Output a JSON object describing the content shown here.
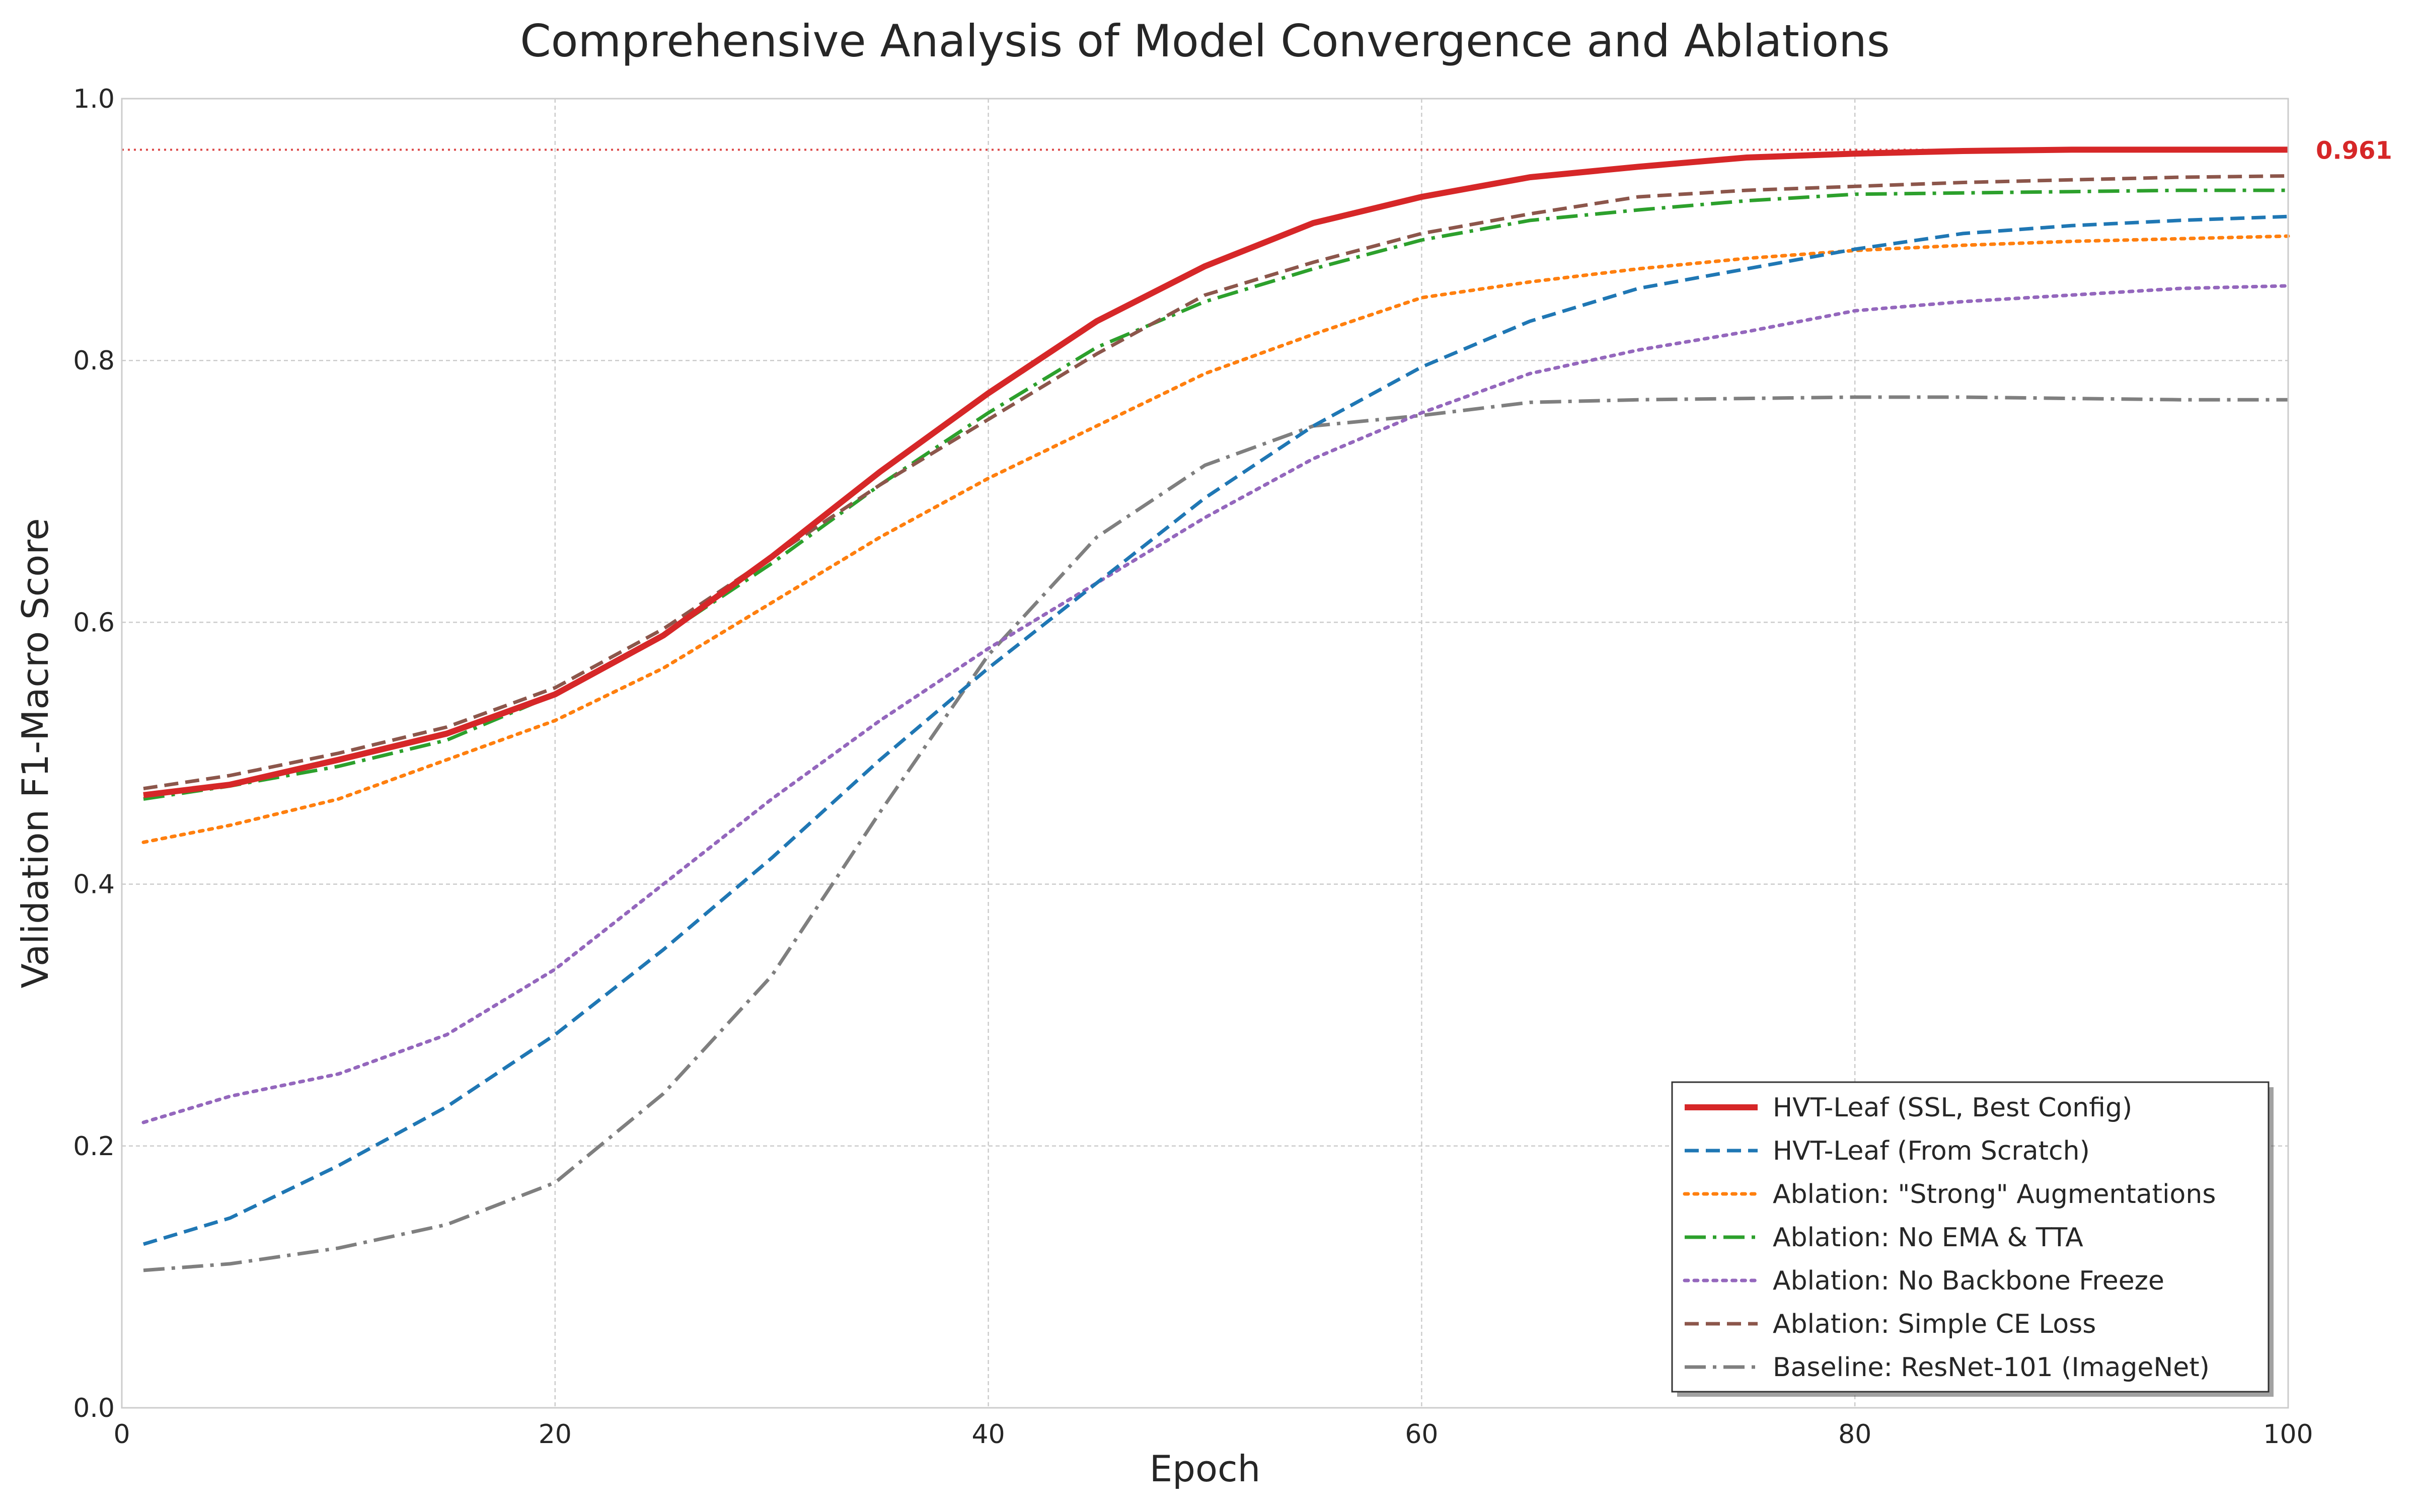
{
  "chart_data": {
    "type": "line",
    "title": "Comprehensive Analysis of Model Convergence and Ablations",
    "xlabel": "Epoch",
    "ylabel": "Validation F1-Macro Score",
    "xlim": [
      0,
      100
    ],
    "ylim": [
      0.0,
      1.0
    ],
    "x_ticks": [
      0,
      20,
      40,
      60,
      80,
      100
    ],
    "x_tick_labels": [
      "0",
      "20",
      "40",
      "60",
      "80",
      "100"
    ],
    "y_ticks": [
      0.0,
      0.2,
      0.4,
      0.6,
      0.8,
      1.0
    ],
    "y_tick_labels": [
      "0.0",
      "0.2",
      "0.4",
      "0.6",
      "0.8",
      "1.0"
    ],
    "grid": true,
    "legend_position": "lower-right",
    "reference_line": {
      "y": 0.961,
      "label": "0.961",
      "color": "#d62728",
      "style": "dotted"
    },
    "x": [
      1,
      5,
      10,
      15,
      20,
      25,
      30,
      35,
      40,
      45,
      50,
      55,
      60,
      65,
      70,
      75,
      80,
      85,
      90,
      95,
      100
    ],
    "series": [
      {
        "name": "HVT-Leaf (SSL, Best Config)",
        "color": "#d62728",
        "style": "solid",
        "width": "thick",
        "values": [
          0.468,
          0.476,
          0.495,
          0.515,
          0.545,
          0.59,
          0.65,
          0.715,
          0.775,
          0.83,
          0.872,
          0.905,
          0.925,
          0.94,
          0.948,
          0.955,
          0.958,
          0.96,
          0.961,
          0.961,
          0.961
        ]
      },
      {
        "name": "HVT-Leaf (From Scratch)",
        "color": "#1f77b4",
        "style": "dashed",
        "width": "normal",
        "values": [
          0.125,
          0.145,
          0.185,
          0.23,
          0.285,
          0.35,
          0.42,
          0.495,
          0.565,
          0.63,
          0.695,
          0.75,
          0.795,
          0.83,
          0.855,
          0.87,
          0.885,
          0.897,
          0.903,
          0.907,
          0.91
        ]
      },
      {
        "name": "Ablation: \"Strong\" Augmentations",
        "color": "#ff7f0e",
        "style": "dotted",
        "width": "normal",
        "values": [
          0.432,
          0.445,
          0.465,
          0.495,
          0.525,
          0.565,
          0.615,
          0.665,
          0.71,
          0.75,
          0.79,
          0.82,
          0.848,
          0.86,
          0.87,
          0.878,
          0.884,
          0.888,
          0.891,
          0.893,
          0.895
        ]
      },
      {
        "name": "Ablation: No EMA & TTA",
        "color": "#2ca02c",
        "style": "dashdot",
        "width": "normal",
        "values": [
          0.465,
          0.475,
          0.49,
          0.51,
          0.545,
          0.59,
          0.645,
          0.705,
          0.76,
          0.81,
          0.845,
          0.87,
          0.892,
          0.907,
          0.915,
          0.922,
          0.927,
          0.928,
          0.929,
          0.93,
          0.93
        ]
      },
      {
        "name": "Ablation: No Backbone Freeze",
        "color": "#9467bd",
        "style": "dotted",
        "width": "normal",
        "values": [
          0.218,
          0.238,
          0.255,
          0.285,
          0.335,
          0.4,
          0.465,
          0.525,
          0.58,
          0.63,
          0.68,
          0.725,
          0.76,
          0.79,
          0.808,
          0.822,
          0.838,
          0.845,
          0.85,
          0.855,
          0.857
        ]
      },
      {
        "name": "Ablation: Simple CE Loss",
        "color": "#8c564b",
        "style": "dashed",
        "width": "normal",
        "values": [
          0.473,
          0.483,
          0.5,
          0.52,
          0.55,
          0.595,
          0.65,
          0.705,
          0.755,
          0.805,
          0.85,
          0.875,
          0.897,
          0.912,
          0.925,
          0.93,
          0.933,
          0.936,
          0.938,
          0.94,
          0.941
        ]
      },
      {
        "name": "Baseline: ResNet-101 (ImageNet)",
        "color": "#7f7f7f",
        "style": "dashdot",
        "width": "normal",
        "values": [
          0.105,
          0.11,
          0.122,
          0.14,
          0.172,
          0.24,
          0.33,
          0.455,
          0.575,
          0.665,
          0.72,
          0.75,
          0.758,
          0.768,
          0.77,
          0.771,
          0.772,
          0.772,
          0.771,
          0.77,
          0.77
        ]
      }
    ]
  }
}
